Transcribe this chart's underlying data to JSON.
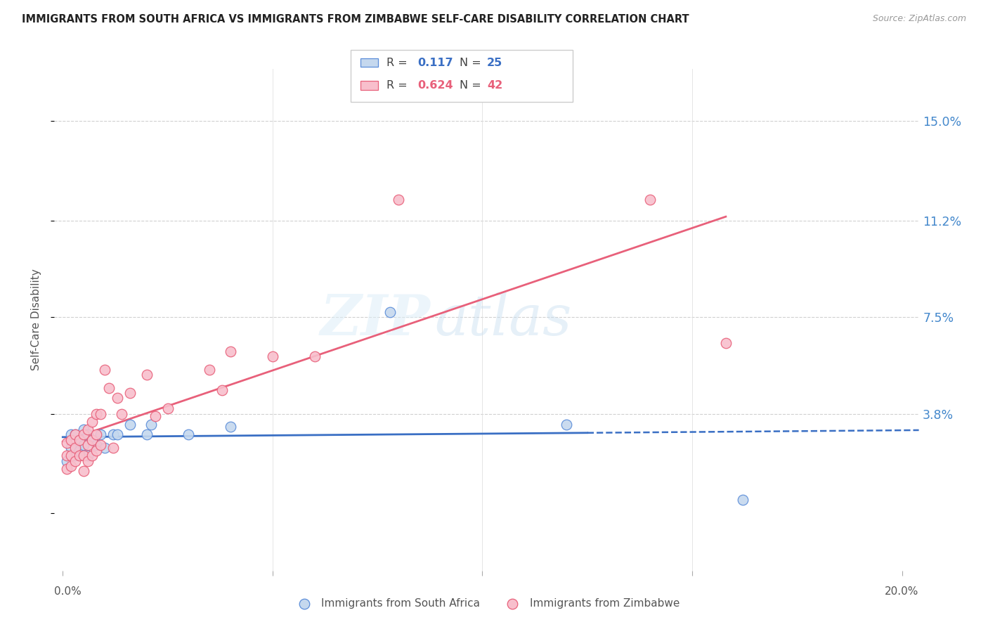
{
  "title": "IMMIGRANTS FROM SOUTH AFRICA VS IMMIGRANTS FROM ZIMBABWE SELF-CARE DISABILITY CORRELATION CHART",
  "source": "Source: ZipAtlas.com",
  "ylabel": "Self-Care Disability",
  "R1": "0.117",
  "N1": "25",
  "R2": "0.624",
  "N2": "42",
  "color1_fill": "#c5d8ee",
  "color1_edge": "#5b8dd9",
  "color2_fill": "#f8bfcc",
  "color2_edge": "#e8607a",
  "line1_color": "#3a6fc4",
  "line2_color": "#e8607a",
  "ytick_values": [
    0.0,
    0.038,
    0.075,
    0.112,
    0.15
  ],
  "ytick_labels": [
    "",
    "3.8%",
    "7.5%",
    "11.2%",
    "15.0%"
  ],
  "ytick_color": "#4488cc",
  "xlim": [
    -0.002,
    0.204
  ],
  "ylim": [
    -0.022,
    0.17
  ],
  "watermark_zip": "ZIP",
  "watermark_atlas": "atlas",
  "legend_label1": "Immigrants from South Africa",
  "legend_label2": "Immigrants from Zimbabwe",
  "south_africa_x": [
    0.001,
    0.002,
    0.002,
    0.003,
    0.003,
    0.004,
    0.004,
    0.005,
    0.005,
    0.006,
    0.006,
    0.007,
    0.008,
    0.009,
    0.01,
    0.012,
    0.013,
    0.016,
    0.02,
    0.021,
    0.03,
    0.04,
    0.078,
    0.12,
    0.162
  ],
  "south_africa_y": [
    0.02,
    0.025,
    0.03,
    0.022,
    0.03,
    0.028,
    0.024,
    0.026,
    0.032,
    0.022,
    0.03,
    0.028,
    0.026,
    0.03,
    0.025,
    0.03,
    0.03,
    0.034,
    0.03,
    0.034,
    0.03,
    0.033,
    0.077,
    0.034,
    0.005
  ],
  "zimbabwe_x": [
    0.001,
    0.001,
    0.001,
    0.002,
    0.002,
    0.002,
    0.003,
    0.003,
    0.003,
    0.004,
    0.004,
    0.005,
    0.005,
    0.005,
    0.006,
    0.006,
    0.006,
    0.007,
    0.007,
    0.007,
    0.008,
    0.008,
    0.008,
    0.009,
    0.009,
    0.01,
    0.011,
    0.012,
    0.013,
    0.014,
    0.016,
    0.02,
    0.022,
    0.025,
    0.035,
    0.038,
    0.04,
    0.05,
    0.06,
    0.08,
    0.14,
    0.158
  ],
  "zimbabwe_y": [
    0.017,
    0.022,
    0.027,
    0.018,
    0.022,
    0.028,
    0.02,
    0.025,
    0.03,
    0.022,
    0.028,
    0.016,
    0.022,
    0.03,
    0.02,
    0.026,
    0.032,
    0.022,
    0.028,
    0.035,
    0.024,
    0.03,
    0.038,
    0.026,
    0.038,
    0.055,
    0.048,
    0.025,
    0.044,
    0.038,
    0.046,
    0.053,
    0.037,
    0.04,
    0.055,
    0.047,
    0.062,
    0.06,
    0.06,
    0.12,
    0.12,
    0.065
  ]
}
